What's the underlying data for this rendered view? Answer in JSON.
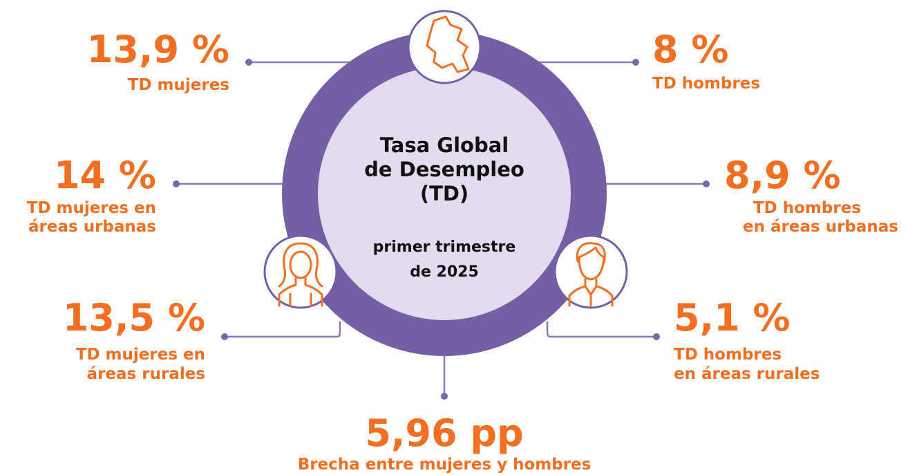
{
  "center": {
    "title": [
      "Tasa Global",
      "de Desempleo",
      "(TD)"
    ],
    "subtitle": [
      "primer trimestre",
      "de 2025"
    ]
  },
  "stats": [
    {
      "value": "13,9 %",
      "label": [
        "TD mujeres"
      ]
    },
    {
      "value": "8 %",
      "label": [
        "TD hombres"
      ]
    },
    {
      "value": "14 %",
      "label": [
        "TD mujeres en",
        "áreas urbanas"
      ]
    },
    {
      "value": "8,9 %",
      "label": [
        "TD hombres",
        "en áreas urbanas"
      ]
    },
    {
      "value": "13,5 %",
      "label": [
        "TD mujeres en",
        "áreas rurales"
      ]
    },
    {
      "value": "5,1 %",
      "label": [
        "TD hombres",
        "en áreas rurales"
      ]
    },
    {
      "value": "5,96 pp",
      "label": [
        "Brecha entre mujeres y hombres"
      ]
    }
  ]
}
